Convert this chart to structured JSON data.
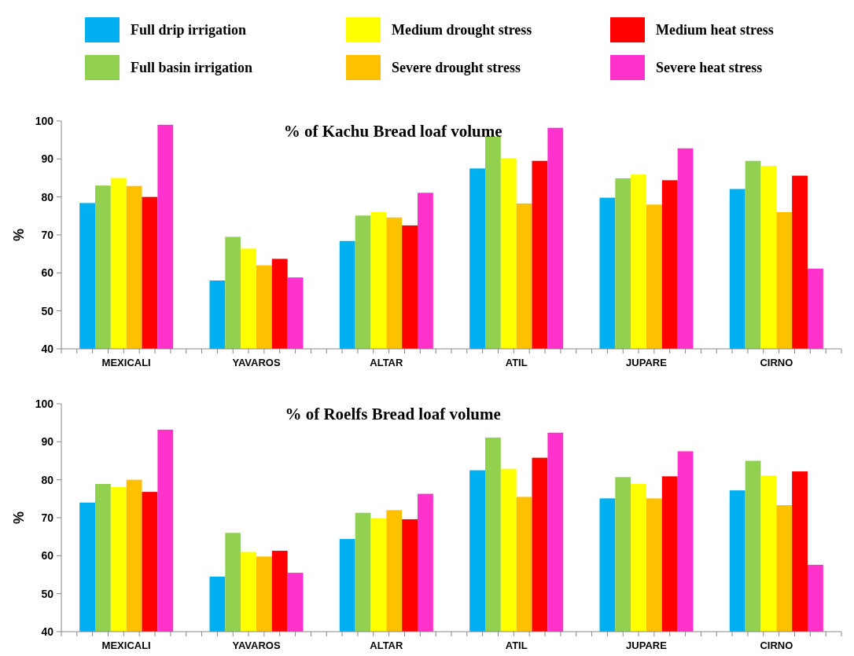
{
  "chart_data": [
    {
      "type": "bar",
      "title": "% of Kachu Bread loaf volume",
      "ylabel": "%",
      "categories": [
        "MEXICALI",
        "YAVAROS",
        "ALTAR",
        "ATIL",
        "JUPARE",
        "CIRNO"
      ],
      "ylim": [
        40,
        100
      ],
      "yticks": [
        40,
        50,
        60,
        70,
        80,
        90,
        100
      ],
      "legend": "top",
      "grid": false,
      "series": [
        {
          "name": "Full drip irrigation",
          "color": "#00b0f0",
          "values": [
            78.4,
            58,
            68.4,
            87.5,
            79.8,
            82.1
          ]
        },
        {
          "name": "Full basin irrigation",
          "color": "#92d050",
          "values": [
            83,
            69.5,
            75.1,
            95.9,
            84.9,
            89.5
          ]
        },
        {
          "name": "Medium drought stress",
          "color": "#ffff00",
          "values": [
            85,
            66.4,
            76,
            90.2,
            85.9,
            88.2
          ]
        },
        {
          "name": "Severe drought stress",
          "color": "#ffc000",
          "values": [
            82.9,
            62,
            74.6,
            78.3,
            78,
            76
          ]
        },
        {
          "name": "Medium heat stress",
          "color": "#ff0000",
          "values": [
            80,
            63.7,
            72.5,
            89.5,
            84.4,
            85.6
          ]
        },
        {
          "name": "Severe heat stress",
          "color": "#ff33cc",
          "values": [
            99,
            58.8,
            81.1,
            98.2,
            92.8,
            61.1
          ]
        }
      ]
    },
    {
      "type": "bar",
      "title": "% of Roelfs Bread loaf volume",
      "ylabel": "%",
      "categories": [
        "MEXICALI",
        "YAVAROS",
        "ALTAR",
        "ATIL",
        "JUPARE",
        "CIRNO"
      ],
      "ylim": [
        40,
        100
      ],
      "yticks": [
        40,
        50,
        60,
        70,
        80,
        90,
        100
      ],
      "grid": false,
      "series": [
        {
          "color": "#00b0f0",
          "values": [
            74,
            54.5,
            64.4,
            82.5,
            75.1,
            77.2
          ]
        },
        {
          "color": "#92d050",
          "values": [
            78.9,
            66,
            71.3,
            91.1,
            80.7,
            85
          ]
        },
        {
          "color": "#ffff00",
          "values": [
            78.1,
            61,
            69.9,
            82.9,
            78.9,
            81.1
          ]
        },
        {
          "color": "#ffc000",
          "values": [
            80,
            59.8,
            72,
            75.5,
            75.1,
            73.3
          ]
        },
        {
          "color": "#ff0000",
          "values": [
            76.8,
            61.3,
            69.6,
            85.8,
            80.9,
            82.2
          ]
        },
        {
          "color": "#ff33cc",
          "values": [
            93.2,
            55.5,
            76.3,
            92.4,
            87.5,
            57.6
          ]
        }
      ]
    }
  ]
}
